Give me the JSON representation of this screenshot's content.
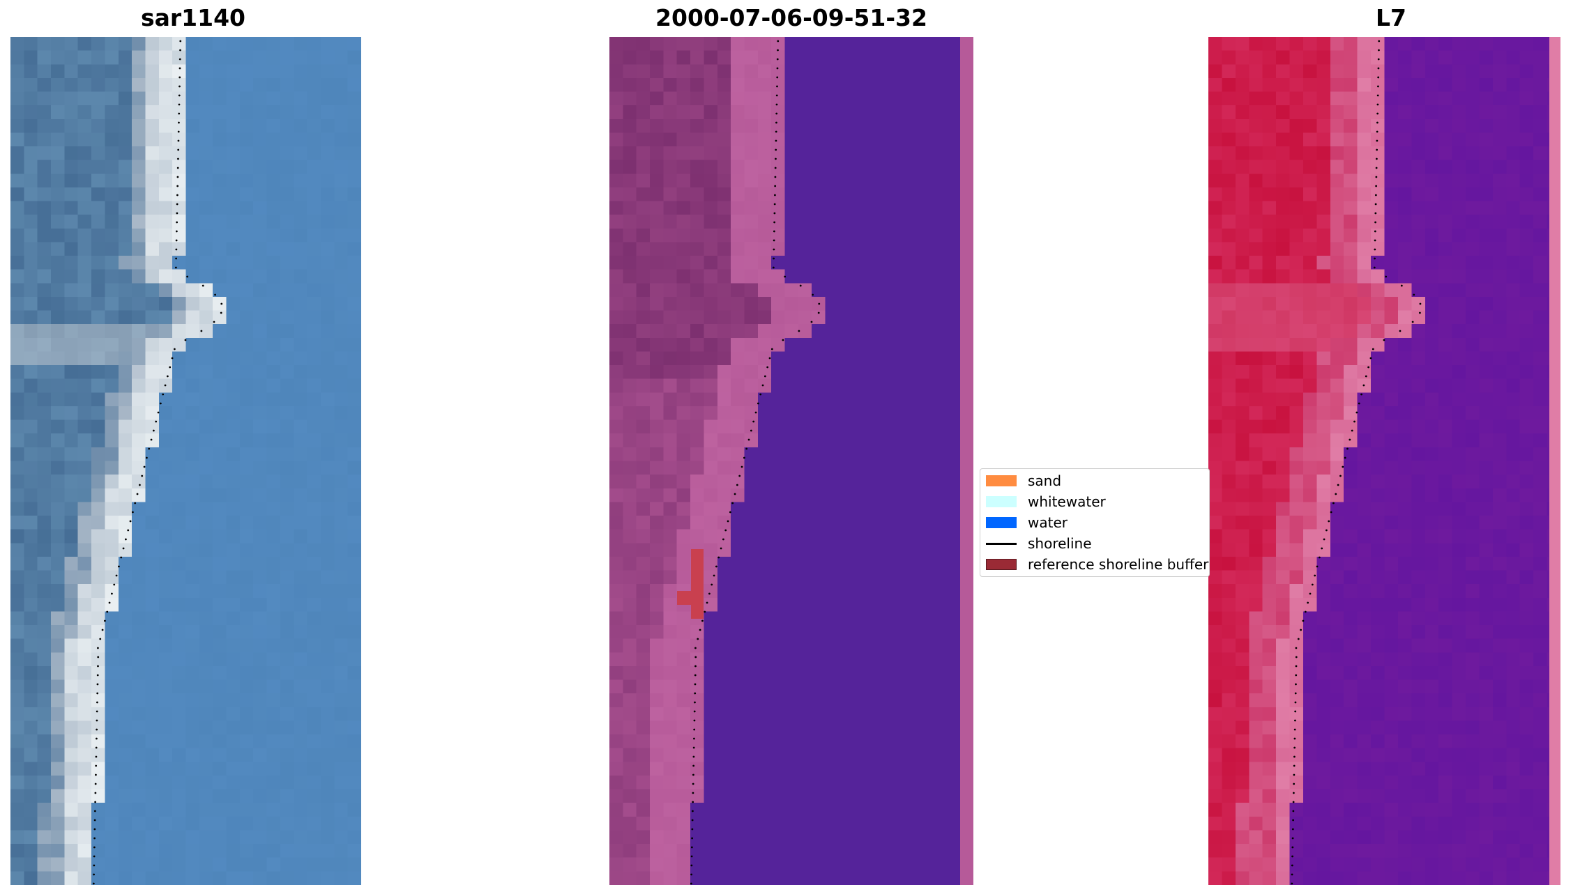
{
  "panels": [
    {
      "title": "sar1140",
      "kind": "rgb"
    },
    {
      "title": "2000-07-06-09-51-32",
      "kind": "classified"
    },
    {
      "title": "L7",
      "kind": "index"
    }
  ],
  "legend": {
    "items": [
      {
        "label": "sand",
        "color": "#ff8c40",
        "type": "patch"
      },
      {
        "label": "whitewater",
        "color": "#ccffff",
        "type": "patch"
      },
      {
        "label": "water",
        "color": "#0066ff",
        "type": "patch"
      },
      {
        "label": "shoreline",
        "color": "#000000",
        "type": "line"
      },
      {
        "label": "reference shoreline buffer",
        "color": "#9a2a35",
        "type": "patch"
      }
    ]
  },
  "colors": {
    "rgb_water": "#4f86bb",
    "rgb_land": "#5d88ad",
    "rgb_white": "#eef3f5",
    "class_water": "#55239a",
    "class_land_dark": "#7a2e6e",
    "class_land_light": "#b65a99",
    "class_buffer": "#c9404f",
    "index_land": "#c8123f",
    "index_beach": "#e07da6",
    "index_water": "#6e1a9e"
  }
}
